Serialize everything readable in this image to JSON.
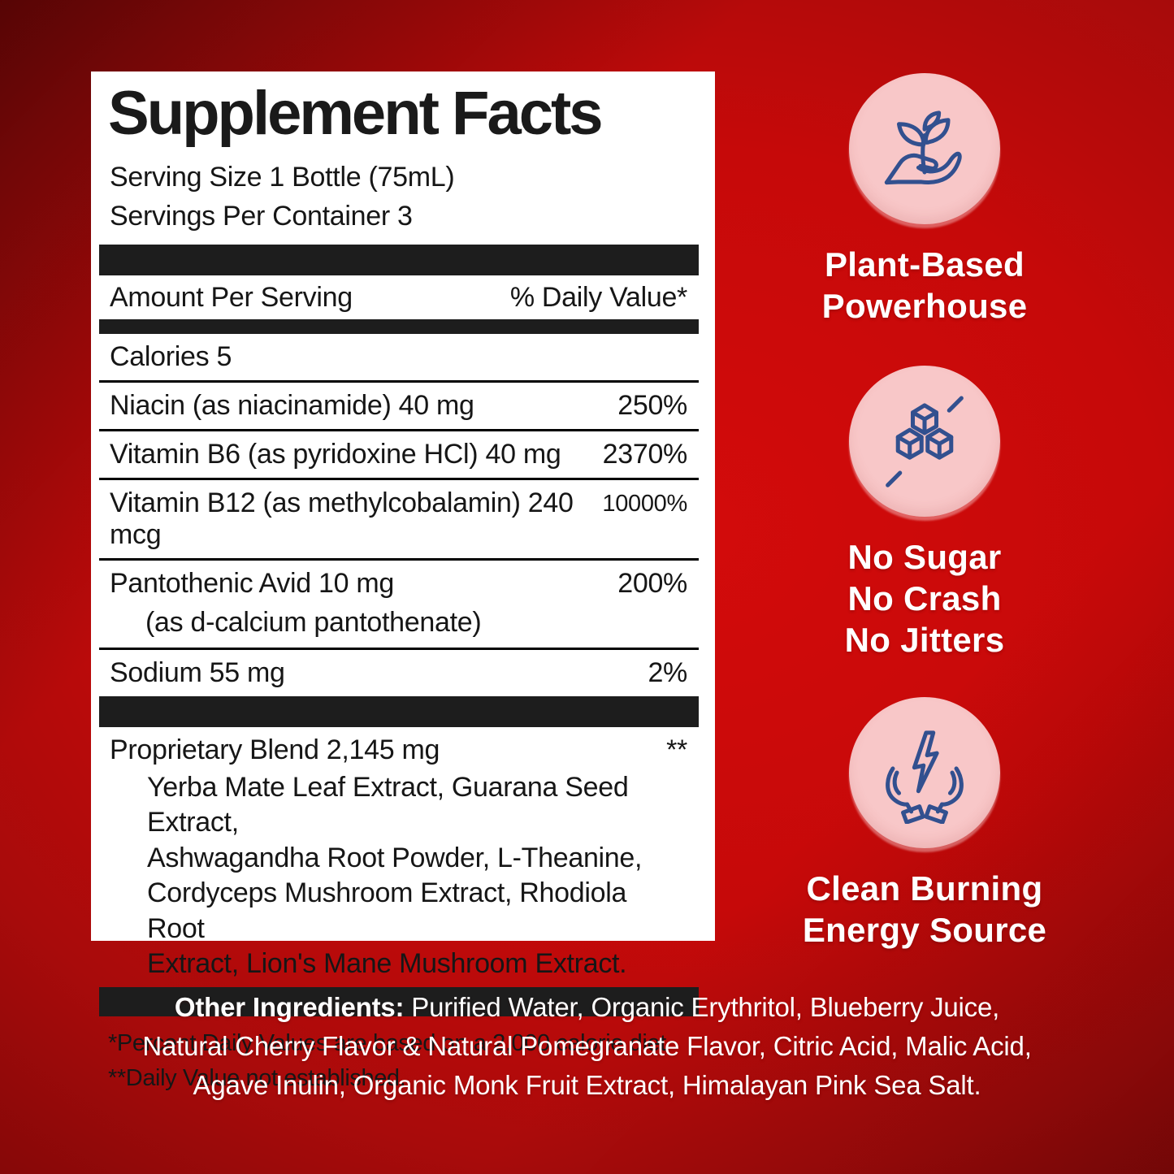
{
  "facts": {
    "title": "Supplement Facts",
    "serving_size": "Serving Size 1 Bottle (75mL)",
    "servings_per_container": "Servings Per Container 3",
    "header": {
      "amount": "Amount Per Serving",
      "daily_value": "% Daily Value*"
    },
    "calories": "Calories 5",
    "rows": [
      {
        "name": "Niacin (as niacinamide) 40 mg",
        "dv": "250%"
      },
      {
        "name": "Vitamin B6 (as pyridoxine HCl) 40 mg",
        "dv": "2370%"
      },
      {
        "name": "Vitamin B12 (as methylcobalamin) 240 mcg",
        "dv": "10000%",
        "small_dv": true
      },
      {
        "name": "Pantothenic Avid 10 mg",
        "sub": "(as d-calcium pantothenate)",
        "dv": "200%"
      },
      {
        "name": "Sodium 55 mg",
        "dv": "2%"
      }
    ],
    "proprietary": {
      "name": "Proprietary Blend 2,145 mg",
      "dv": "**",
      "lines": [
        "Yerba Mate Leaf Extract, Guarana Seed Extract,",
        "Ashwagandha Root Powder, L-Theanine,",
        "Cordyceps Mushroom Extract, Rhodiola Root",
        "Extract, Lion's Mane Mushroom Extract."
      ]
    },
    "footnotes": [
      "*Percent Daily Values are based on a 2,000 calorie diet",
      "**Daily Value not established."
    ]
  },
  "benefits": [
    {
      "icon": "plant-hand-icon",
      "lines": [
        "Plant-Based",
        "Powerhouse"
      ]
    },
    {
      "icon": "no-sugar-cubes-icon",
      "lines": [
        "No Sugar",
        "No Crash",
        "No Jitters"
      ]
    },
    {
      "icon": "energy-hands-icon",
      "lines": [
        "Clean Burning",
        "Energy Source"
      ]
    }
  ],
  "other_ingredients": {
    "label": "Other Ingredients:",
    "lines": [
      " Purified Water, Organic Erythritol, Blueberry Juice,",
      "Natural Cherry Flavor & Natural Pomegranate Flavor, Citric Acid, Malic Acid,",
      "Agave Inulin, Organic Monk Fruit Extract, Himalayan Pink Sea Salt."
    ]
  },
  "colors": {
    "background_red_bright": "#d30b0b",
    "background_red_dark": "#5a0404",
    "panel_white": "#ffffff",
    "panel_text": "#161616",
    "bar_black": "#1d1d1d",
    "circle_pink": "#f8c7c8",
    "icon_navy": "#32508f",
    "benefit_text": "#ffffff"
  }
}
